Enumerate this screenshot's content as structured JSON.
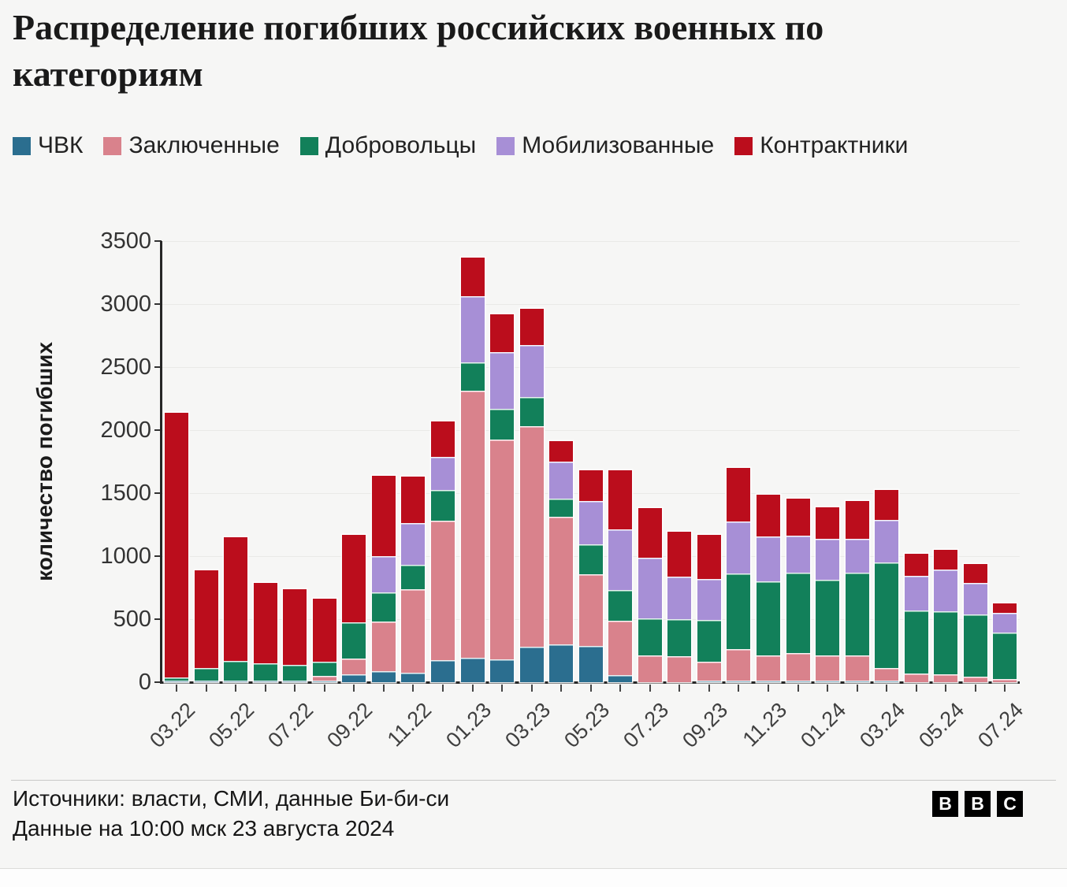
{
  "title": "Распределение погибших российских военных по категориям",
  "legend": [
    {
      "key": "chvk",
      "label": "ЧВК",
      "color": "#2b6e8f"
    },
    {
      "key": "prisoners",
      "label": "Заключенные",
      "color": "#d9828c"
    },
    {
      "key": "volunteers",
      "label": "Добровольцы",
      "color": "#12805a"
    },
    {
      "key": "mobilized",
      "label": "Мобилизованные",
      "color": "#a78fd6"
    },
    {
      "key": "contract",
      "label": "Контрактники",
      "color": "#bb0d1c"
    }
  ],
  "y_axis": {
    "label": "количество погибших",
    "ticks": [
      0,
      500,
      1000,
      1500,
      2000,
      2500,
      3000,
      3500
    ],
    "max": 3500
  },
  "x_axis": {
    "shown_tick_labels": [
      "03.22",
      "05.22",
      "07.22",
      "09.22",
      "11.22",
      "01.23",
      "03.23",
      "05.23",
      "07.23",
      "09.23",
      "11.23",
      "01.24",
      "03.24",
      "05.24",
      "07.24"
    ]
  },
  "chart_data": {
    "type": "bar",
    "stacked": true,
    "title": "Распределение погибших российских военных по категориям",
    "xlabel": "",
    "ylabel": "количество погибших",
    "ylim": [
      0,
      3500
    ],
    "grid": true,
    "legend_position": "top",
    "categories": [
      "03.22",
      "04.22",
      "05.22",
      "06.22",
      "07.22",
      "08.22",
      "09.22",
      "10.22",
      "11.22",
      "12.22",
      "01.23",
      "02.23",
      "03.23",
      "04.23",
      "05.23",
      "06.23",
      "07.23",
      "08.23",
      "09.23",
      "10.23",
      "11.23",
      "12.23",
      "01.24",
      "02.24",
      "03.24",
      "04.24",
      "05.24",
      "06.24",
      "07.24"
    ],
    "series": [
      {
        "name": "ЧВК",
        "key": "chvk",
        "values": [
          10,
          15,
          15,
          15,
          15,
          10,
          60,
          85,
          75,
          175,
          195,
          180,
          280,
          300,
          285,
          55,
          0,
          0,
          10,
          10,
          10,
          10,
          10,
          10,
          10,
          0,
          0,
          0,
          0
        ]
      },
      {
        "name": "Заключенные",
        "key": "prisoners",
        "values": [
          0,
          0,
          0,
          0,
          0,
          40,
          125,
          395,
          665,
          1105,
          2115,
          1745,
          1750,
          1010,
          570,
          430,
          210,
          205,
          150,
          255,
          200,
          220,
          205,
          200,
          100,
          70,
          65,
          45,
          25
        ]
      },
      {
        "name": "Добровольцы",
        "key": "volunteers",
        "values": [
          30,
          100,
          155,
          135,
          120,
          115,
          290,
          230,
          190,
          245,
          230,
          245,
          230,
          145,
          240,
          245,
          295,
          295,
          335,
          600,
          590,
          640,
          600,
          660,
          840,
          500,
          495,
          495,
          370
        ]
      },
      {
        "name": "Мобилизованные",
        "key": "mobilized",
        "values": [
          0,
          0,
          0,
          0,
          0,
          0,
          0,
          290,
          335,
          265,
          520,
          450,
          415,
          295,
          340,
          480,
          480,
          340,
          325,
          410,
          355,
          290,
          325,
          270,
          335,
          275,
          335,
          250,
          155
        ]
      },
      {
        "name": "Контрактники",
        "key": "contract",
        "values": [
          2100,
          775,
          980,
          640,
          605,
          495,
          695,
          640,
          365,
          280,
          310,
          300,
          290,
          160,
          245,
          470,
          395,
          355,
          350,
          425,
          335,
          295,
          245,
          295,
          240,
          175,
          155,
          150,
          75
        ]
      }
    ]
  },
  "footer": {
    "sources": "Источники: власти, СМИ, данные Би-би-си",
    "updated": "Данные на 10:00 мск 23 августа 2024",
    "logo_letters": [
      "B",
      "B",
      "C"
    ]
  }
}
